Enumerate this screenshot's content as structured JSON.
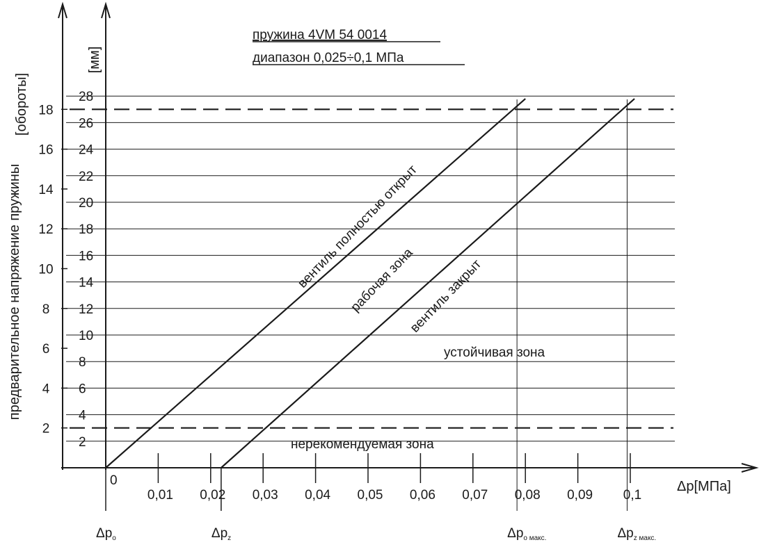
{
  "chart_data": {
    "type": "line",
    "title_lines": [
      "пружина 4VM 54 0014",
      "диапазон 0,025÷0,1 МПа"
    ],
    "xlabel": "Δp[МПа]",
    "ylabel_outer": "предварительное напряжение пружины",
    "ylabel_outer_unit": "[обороты]",
    "ylabel_inner_unit": "[мм]",
    "xlim": [
      0,
      0.1
    ],
    "x_ticks": [
      {
        "value": 0,
        "label": "0"
      },
      {
        "value": 0.01,
        "label": "0,01"
      },
      {
        "value": 0.02,
        "label": "0,02"
      },
      {
        "value": 0.03,
        "label": "0,03"
      },
      {
        "value": 0.04,
        "label": "0,04"
      },
      {
        "value": 0.05,
        "label": "0,05"
      },
      {
        "value": 0.06,
        "label": "0,06"
      },
      {
        "value": 0.07,
        "label": "0,07"
      },
      {
        "value": 0.08,
        "label": "0,08"
      },
      {
        "value": 0.09,
        "label": "0,09"
      },
      {
        "value": 0.1,
        "label": "0,1"
      }
    ],
    "y_mm_ticks": [
      2,
      4,
      6,
      8,
      10,
      12,
      14,
      16,
      18,
      20,
      22,
      24,
      26,
      28
    ],
    "y_turns_ticks": [
      2,
      4,
      6,
      8,
      10,
      12,
      14,
      16,
      18
    ],
    "mm_per_turn": 1.5,
    "grid": true,
    "reference_lines_mm": [
      3,
      27
    ],
    "series": [
      {
        "name": "вентиль полностью открыт",
        "x": [
          0,
          0.08
        ],
        "y": [
          0,
          27.8
        ]
      },
      {
        "name": "вентиль закрыт",
        "x": [
          0.022,
          0.1008
        ],
        "y": [
          0,
          27.8
        ]
      }
    ],
    "markers": [
      {
        "x": 0,
        "main": "Δp",
        "sub": "o"
      },
      {
        "x": 0.022,
        "main": "Δp",
        "sub": "z"
      },
      {
        "x": 0.0784,
        "main": "Δp",
        "sub": "o макс."
      },
      {
        "x": 0.0994,
        "main": "Δp",
        "sub": "z макс."
      }
    ],
    "zones": {
      "working": "рабочая зона",
      "stable": "устойчивая зона",
      "not_recommended": "нерекомендуемая зона"
    }
  }
}
